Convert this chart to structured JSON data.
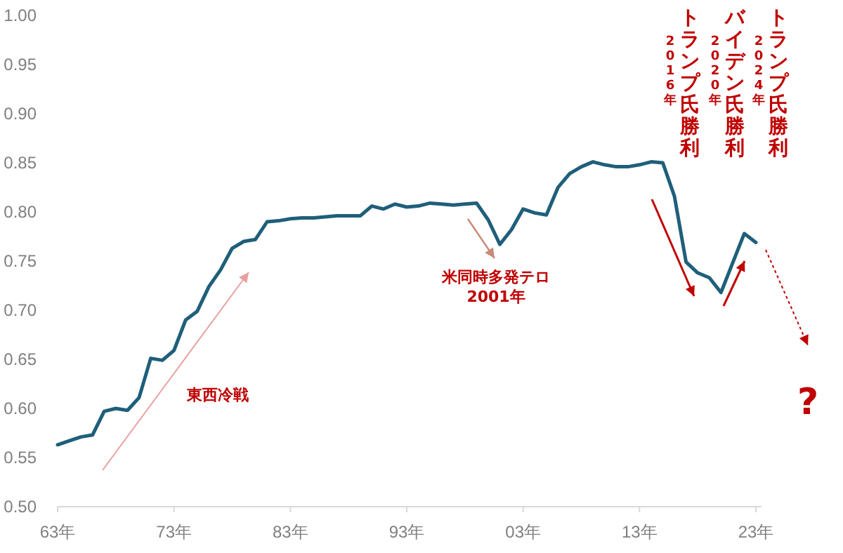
{
  "chart_data": {
    "type": "line",
    "categories": [
      "63年",
      null,
      null,
      null,
      null,
      null,
      null,
      null,
      null,
      null,
      "73年",
      null,
      null,
      null,
      null,
      null,
      null,
      null,
      null,
      null,
      "83年",
      null,
      null,
      null,
      null,
      null,
      null,
      null,
      null,
      null,
      "93年",
      null,
      null,
      null,
      null,
      null,
      null,
      null,
      null,
      null,
      "03年",
      null,
      null,
      null,
      null,
      null,
      null,
      null,
      null,
      null,
      "13年",
      null,
      null,
      null,
      null,
      null,
      null,
      null,
      null,
      null,
      "23年"
    ],
    "series": [
      {
        "color": "#1f5f7a",
        "values": [
          0.563,
          0.567,
          0.571,
          0.573,
          0.597,
          0.6,
          0.598,
          0.611,
          0.651,
          0.649,
          0.659,
          0.69,
          0.699,
          0.724,
          0.741,
          0.763,
          0.77,
          0.772,
          0.79,
          0.791,
          0.793,
          0.794,
          0.794,
          0.795,
          0.796,
          0.796,
          0.796,
          0.806,
          0.803,
          0.808,
          0.805,
          0.806,
          0.809,
          0.808,
          0.807,
          0.808,
          0.809,
          0.792,
          0.767,
          0.782,
          0.803,
          0.799,
          0.797,
          0.825,
          0.839,
          0.846,
          0.851,
          0.848,
          0.846,
          0.846,
          0.848,
          0.851,
          0.85,
          0.816,
          0.749,
          0.738,
          0.733,
          0.718,
          0.748,
          0.778,
          0.769
        ]
      }
    ],
    "ylim": [
      0.5,
      1.0
    ],
    "yticks": [
      {
        "value": 0.5,
        "label": "0.50"
      },
      {
        "value": 0.55,
        "label": "0.55"
      },
      {
        "value": 0.6,
        "label": "0.60"
      },
      {
        "value": 0.65,
        "label": "0.65"
      },
      {
        "value": 0.7,
        "label": "0.70"
      },
      {
        "value": 0.75,
        "label": "0.75"
      },
      {
        "value": 0.8,
        "label": "0.80"
      },
      {
        "value": 0.85,
        "label": "0.85"
      },
      {
        "value": 0.9,
        "label": "0.90"
      },
      {
        "value": 0.95,
        "label": "0.95"
      },
      {
        "value": 1.0,
        "label": "1.00"
      }
    ],
    "grid": false,
    "marker": "none",
    "line_style": "solid",
    "annotations": [
      "東西冷戦",
      "米同時多発テロ\n2001年",
      "トランプ氏勝利",
      "2016年",
      "バイデン氏勝利",
      "2020年",
      "トランプ氏勝利",
      "2024年",
      "?"
    ]
  }
}
